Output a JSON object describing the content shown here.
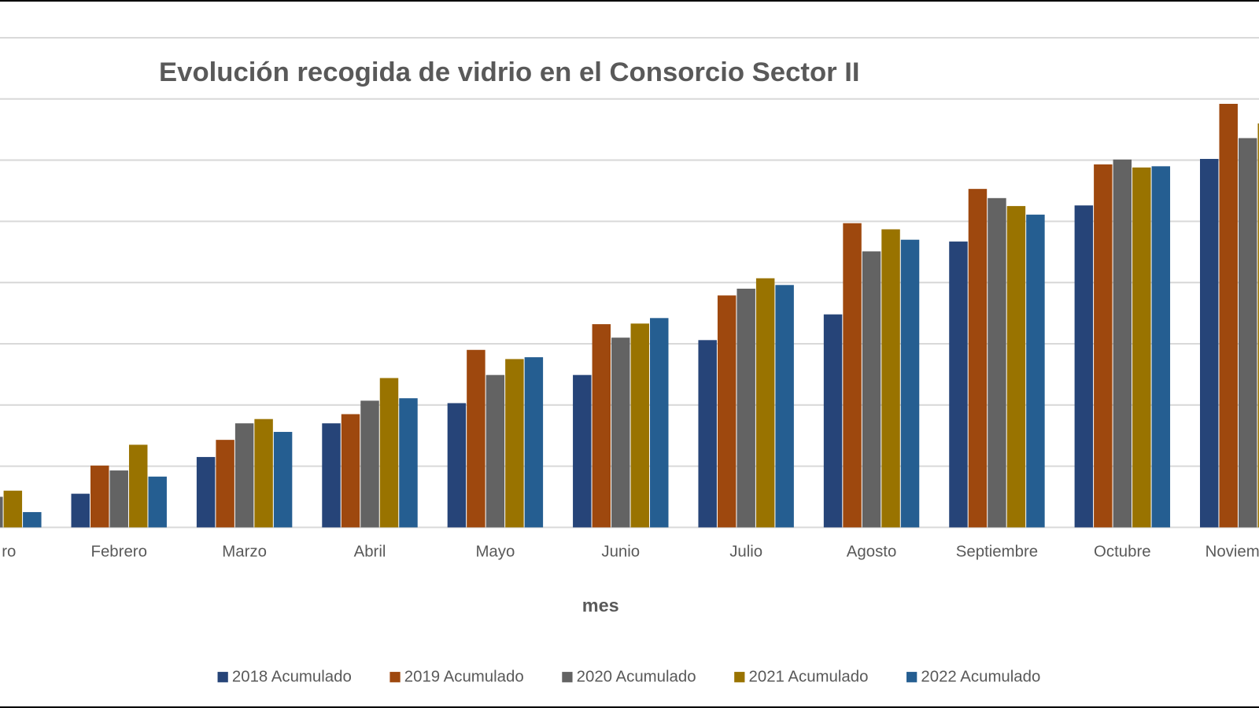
{
  "chart_data": {
    "type": "bar",
    "title": "Evolución recogida de vidrio en el Consorcio Sector II",
    "x_label": "mes",
    "categories": [
      "ro",
      "Febrero",
      "Marzo",
      "Abril",
      "Mayo",
      "Junio",
      "Julio",
      "Agosto",
      "Septiembre",
      "Octubre",
      "Noviem"
    ],
    "series": [
      {
        "name": "2018 Acumulado",
        "color": "#264478",
        "values": [
          null,
          0.55,
          1.15,
          1.7,
          2.03,
          2.49,
          3.06,
          3.48,
          4.67,
          5.26,
          6.02
        ]
      },
      {
        "name": "2019 Acumulado",
        "color": "#9e480e",
        "values": [
          null,
          1.01,
          1.43,
          1.85,
          2.9,
          3.32,
          3.79,
          4.97,
          5.53,
          5.93,
          6.92
        ]
      },
      {
        "name": "2020 Acumulado",
        "color": "#636363",
        "values": [
          0.5,
          0.93,
          1.7,
          2.07,
          2.49,
          3.1,
          3.9,
          4.51,
          5.38,
          6.01,
          6.36
        ]
      },
      {
        "name": "2021 Acumulado",
        "color": "#997300",
        "values": [
          0.6,
          1.35,
          1.77,
          2.44,
          2.75,
          3.33,
          4.07,
          4.87,
          5.25,
          5.88,
          6.6
        ]
      },
      {
        "name": "2022 Acumulado",
        "color": "#255e91",
        "values": [
          0.25,
          0.83,
          1.56,
          2.11,
          2.78,
          3.42,
          3.96,
          4.7,
          5.11,
          5.9,
          null
        ]
      }
    ],
    "ylim": [
      0,
      8
    ],
    "yticks": [
      0,
      1,
      2,
      3,
      4,
      5,
      6,
      7,
      8
    ],
    "ytick_labels_shown": false,
    "grid": true,
    "legend": "bottom"
  }
}
